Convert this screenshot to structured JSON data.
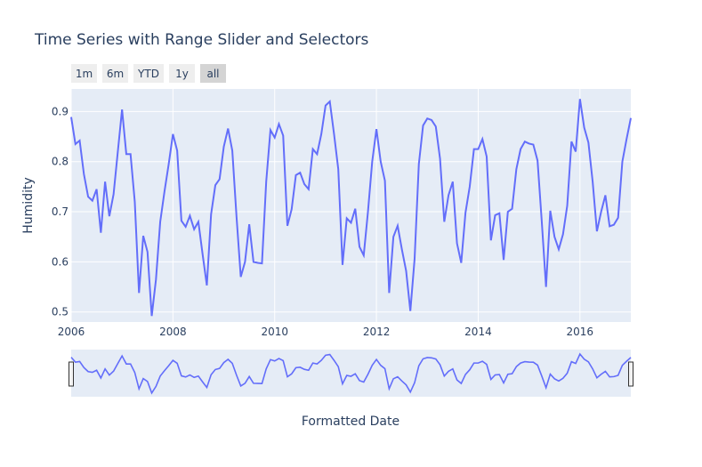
{
  "chart_data": {
    "type": "line",
    "title": "Time Series with Range Slider and Selectors",
    "xlabel": "Formatted Date",
    "ylabel": "Humidity",
    "xlim": [
      "2006-01",
      "2016-12"
    ],
    "ylim": [
      0.48,
      0.945
    ],
    "x_ticks": [
      2006,
      2008,
      2010,
      2012,
      2014,
      2016
    ],
    "y_ticks": [
      0.5,
      0.6,
      0.7,
      0.8,
      0.9
    ],
    "grid": true,
    "range_selector_buttons": [
      "1m",
      "6m",
      "YTD",
      "1y",
      "all"
    ],
    "active_button": "all",
    "range_slider": true,
    "line_color": "#636efa",
    "plot_bg": "#e5ecf6",
    "series": [
      {
        "start": "2006-01",
        "frequency": "monthly",
        "values": [
          0.889,
          0.835,
          0.842,
          0.775,
          0.73,
          0.722,
          0.745,
          0.658,
          0.76,
          0.691,
          0.735,
          0.82,
          0.904,
          0.815,
          0.815,
          0.72,
          0.538,
          0.652,
          0.62,
          0.492,
          0.565,
          0.68,
          0.74,
          0.795,
          0.855,
          0.822,
          0.682,
          0.67,
          0.692,
          0.665,
          0.68,
          0.615,
          0.553,
          0.695,
          0.753,
          0.765,
          0.83,
          0.866,
          0.822,
          0.69,
          0.57,
          0.6,
          0.675,
          0.6,
          0.598,
          0.597,
          0.76,
          0.863,
          0.848,
          0.875,
          0.852,
          0.672,
          0.705,
          0.773,
          0.778,
          0.755,
          0.745,
          0.825,
          0.815,
          0.855,
          0.912,
          0.92,
          0.855,
          0.785,
          0.594,
          0.687,
          0.678,
          0.706,
          0.63,
          0.613,
          0.7,
          0.8,
          0.865,
          0.8,
          0.762,
          0.538,
          0.65,
          0.672,
          0.625,
          0.582,
          0.502,
          0.606,
          0.795,
          0.872,
          0.886,
          0.883,
          0.87,
          0.806,
          0.68,
          0.733,
          0.76,
          0.637,
          0.598,
          0.698,
          0.75,
          0.825,
          0.825,
          0.845,
          0.81,
          0.643,
          0.693,
          0.697,
          0.604,
          0.7,
          0.706,
          0.785,
          0.825,
          0.84,
          0.836,
          0.834,
          0.802,
          0.68,
          0.55,
          0.702,
          0.65,
          0.625,
          0.655,
          0.712,
          0.84,
          0.82,
          0.925,
          0.868,
          0.838,
          0.76,
          0.661,
          0.7,
          0.733,
          0.671,
          0.674,
          0.688,
          0.8,
          0.845,
          0.887
        ]
      }
    ]
  }
}
